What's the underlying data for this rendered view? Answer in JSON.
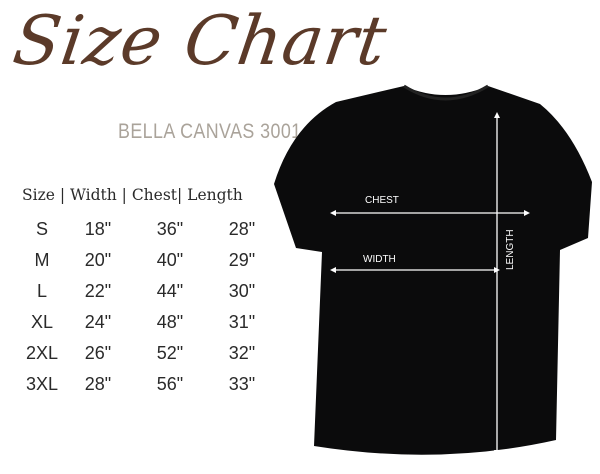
{
  "title": "Size Chart",
  "subtitle": "BELLA CANVAS 3001",
  "table": {
    "header": "Size | Width | Chest| Length",
    "rows": [
      [
        "S",
        "18\"",
        "36\"",
        "28\""
      ],
      [
        "M",
        "20\"",
        "40\"",
        "29\""
      ],
      [
        "L",
        "22\"",
        "44\"",
        "30\""
      ],
      [
        "XL",
        "24\"",
        "48\"",
        "31\""
      ],
      [
        "2XL",
        "26\"",
        "52\"",
        "32\""
      ],
      [
        "3XL",
        "28\"",
        "56\"",
        "33\""
      ]
    ]
  },
  "shirt": {
    "color": "#0b0b0c",
    "labels": {
      "chest": "CHEST",
      "width": "WIDTH",
      "length": "LENGTH"
    }
  },
  "colors": {
    "title": "#5b3a29",
    "subtitle": "#aaa39a"
  }
}
